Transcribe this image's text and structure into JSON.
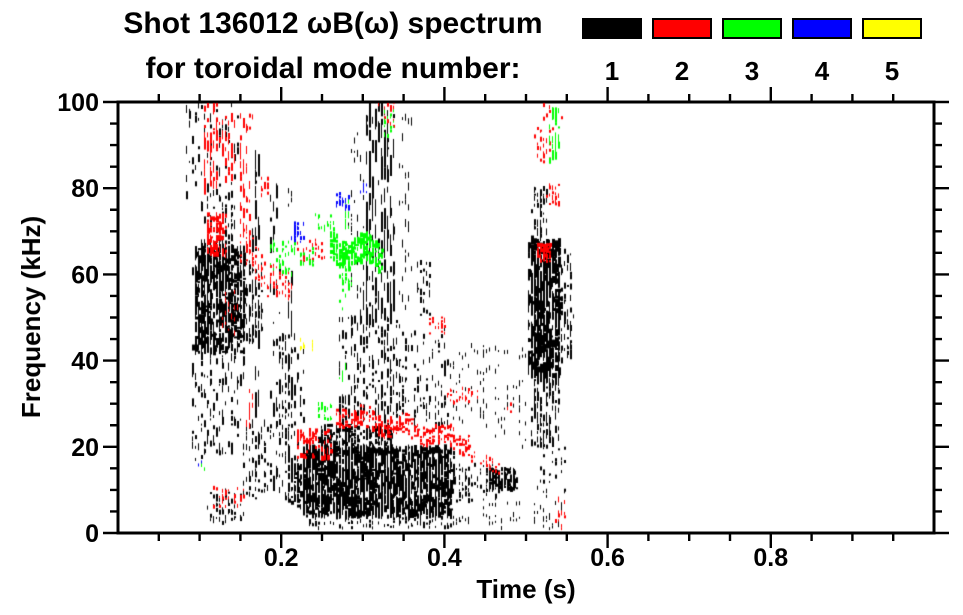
{
  "title": {
    "line1": "Shot 136012 ωB(ω) spectrum",
    "line2": "for toroidal mode number:"
  },
  "legend": {
    "entries": [
      {
        "label": "1",
        "color": "#000000"
      },
      {
        "label": "2",
        "color": "#ff0000"
      },
      {
        "label": "3",
        "color": "#00ff00"
      },
      {
        "label": "4",
        "color": "#0000ff"
      },
      {
        "label": "5",
        "color": "#ffff00"
      }
    ]
  },
  "chart_data": {
    "type": "scatter",
    "title": "Shot 136012 ωB(ω) spectrum for toroidal mode number 1-5",
    "xlabel": "Time (s)",
    "ylabel": "Frequency (kHz)",
    "xlim": [
      0,
      1
    ],
    "ylim": [
      0,
      100
    ],
    "x_major_ticks": [
      0.2,
      0.4,
      0.6,
      0.8
    ],
    "x_tick_labels": [
      "0.2",
      "0.4",
      "0.6",
      "0.8"
    ],
    "x_minor_step": 0.05,
    "y_major_ticks": [
      0,
      20,
      40,
      60,
      80,
      100
    ],
    "y_tick_labels": [
      "0",
      "20",
      "40",
      "60",
      "80",
      "100"
    ],
    "y_minor_step": 5,
    "grid": false,
    "legend_position": "top-right",
    "series": [
      {
        "name": "toroidal mode n=1",
        "color": "#000000",
        "clusters": [
          {
            "t": [
              0.092,
              0.155
            ],
            "f": [
              42,
              66
            ],
            "n": 650,
            "mw": 3,
            "mh": 9
          },
          {
            "t": [
              0.1,
              0.135
            ],
            "f": [
              57,
              68
            ],
            "n": 220,
            "mw": 2,
            "mh": 6
          },
          {
            "t": [
              0.155,
              0.177
            ],
            "f": [
              44,
              63
            ],
            "n": 70,
            "mw": 2,
            "mh": 8
          },
          {
            "t": [
              0.082,
              0.147
            ],
            "f": [
              78,
              101
            ],
            "n": 75,
            "mw": 2,
            "mh": 9
          },
          {
            "t": [
              0.1,
              0.142
            ],
            "f": [
              66,
              78
            ],
            "n": 55,
            "mw": 2,
            "mh": 6
          },
          {
            "t": [
              0.09,
              0.155
            ],
            "f": [
              17,
              43
            ],
            "n": 120,
            "mw": 2,
            "mh": 9
          },
          {
            "t": [
              0.165,
              0.173
            ],
            "f": [
              20,
              88
            ],
            "n": 35,
            "mw": 2,
            "mh": 20
          },
          {
            "t": [
              0.186,
              0.196
            ],
            "f": [
              10,
              82
            ],
            "n": 35,
            "mw": 2,
            "mh": 16
          },
          {
            "t": [
              0.209,
              0.214
            ],
            "f": [
              12,
              61
            ],
            "n": 25,
            "mw": 2,
            "mh": 18
          },
          {
            "t": [
              0.15,
              0.22
            ],
            "f": [
              8,
              26
            ],
            "n": 130,
            "mw": 2,
            "mh": 6
          },
          {
            "t": [
              0.196,
              0.226
            ],
            "f": [
              26,
              46
            ],
            "n": 60,
            "mw": 2,
            "mh": 8
          },
          {
            "t": [
              0.11,
              0.155
            ],
            "f": [
              2,
              10
            ],
            "n": 55,
            "mw": 2,
            "mh": 5
          },
          {
            "t": [
              0.208,
              0.228
            ],
            "f": [
              6,
              16
            ],
            "n": 80,
            "mw": 3,
            "mh": 6
          },
          {
            "t": [
              0.225,
              0.41
            ],
            "f": [
              4,
              20
            ],
            "n": 1600,
            "mw": 3,
            "mh": 10
          },
          {
            "t": [
              0.245,
              0.335
            ],
            "f": [
              18,
              25
            ],
            "n": 240,
            "mw": 3,
            "mh": 6
          },
          {
            "t": [
              0.23,
              0.43
            ],
            "f": [
              1,
              4
            ],
            "n": 110,
            "mw": 2,
            "mh": 4
          },
          {
            "t": [
              0.27,
              0.345
            ],
            "f": [
              25,
              50
            ],
            "n": 210,
            "mw": 2,
            "mh": 9
          },
          {
            "t": [
              0.302,
              0.337
            ],
            "f": [
              50,
              101
            ],
            "n": 160,
            "mw": 2,
            "mh": 22
          },
          {
            "t": [
              0.283,
              0.302
            ],
            "f": [
              50,
              96
            ],
            "n": 40,
            "mw": 1,
            "mh": 8
          },
          {
            "t": [
              0.345,
              0.36
            ],
            "f": [
              52,
              100
            ],
            "n": 32,
            "mw": 1,
            "mh": 9
          },
          {
            "t": [
              0.34,
              0.405
            ],
            "f": [
              24,
              48
            ],
            "n": 110,
            "mw": 2,
            "mh": 7
          },
          {
            "t": [
              0.365,
              0.383
            ],
            "f": [
              50,
              63
            ],
            "n": 28,
            "mw": 2,
            "mh": 6
          },
          {
            "t": [
              0.405,
              0.455
            ],
            "f": [
              24,
              44
            ],
            "n": 55,
            "mw": 1,
            "mh": 5
          },
          {
            "t": [
              0.415,
              0.465
            ],
            "f": [
              7,
              16
            ],
            "n": 70,
            "mw": 2,
            "mh": 5
          },
          {
            "t": [
              0.452,
              0.487
            ],
            "f": [
              10,
              15
            ],
            "n": 170,
            "mw": 3,
            "mh": 5
          },
          {
            "t": [
              0.46,
              0.505
            ],
            "f": [
              20,
              43
            ],
            "n": 45,
            "mw": 1,
            "mh": 5
          },
          {
            "t": [
              0.503,
              0.541
            ],
            "f": [
              36,
              68
            ],
            "n": 680,
            "mw": 3,
            "mh": 10
          },
          {
            "t": [
              0.541,
              0.556
            ],
            "f": [
              40,
              66
            ],
            "n": 60,
            "mw": 2,
            "mh": 7
          },
          {
            "t": [
              0.505,
              0.54
            ],
            "f": [
              20,
              36
            ],
            "n": 130,
            "mw": 2,
            "mh": 7
          },
          {
            "t": [
              0.507,
              0.524
            ],
            "f": [
              68,
              80
            ],
            "n": 55,
            "mw": 2,
            "mh": 6
          },
          {
            "t": [
              0.515,
              0.55
            ],
            "f": [
              8,
              20
            ],
            "n": 30,
            "mw": 2,
            "mh": 4
          },
          {
            "t": [
              0.44,
              0.55
            ],
            "f": [
              1,
              7
            ],
            "n": 50,
            "mw": 1,
            "mh": 4
          },
          {
            "t": [
              0.208,
              0.214
            ],
            "f": [
              76,
              80
            ],
            "n": 8,
            "mw": 1,
            "mh": 4
          }
        ]
      },
      {
        "name": "toroidal mode n=2",
        "color": "#ff0000",
        "clusters": [
          {
            "t": [
              0.104,
              0.121
            ],
            "f": [
              78,
              101
            ],
            "n": 55,
            "mw": 2,
            "mh": 12
          },
          {
            "t": [
              0.125,
              0.141
            ],
            "f": [
              80,
              97
            ],
            "n": 35,
            "mw": 2,
            "mh": 9
          },
          {
            "t": [
              0.108,
              0.131
            ],
            "f": [
              64,
              74
            ],
            "n": 95,
            "mw": 3,
            "mh": 6
          },
          {
            "t": [
              0.148,
              0.163
            ],
            "f": [
              66,
              97
            ],
            "n": 42,
            "mw": 2,
            "mh": 10
          },
          {
            "t": [
              0.148,
              0.212
            ],
            "f": [
              66,
              56
            ],
            "n": 100,
            "mw": 2,
            "mh": 4,
            "band": true,
            "spread": 4
          },
          {
            "t": [
              0.128,
              0.147
            ],
            "f": [
              46,
              56
            ],
            "n": 18,
            "mw": 1,
            "mh": 6
          },
          {
            "t": [
              0.156,
              0.163
            ],
            "f": [
              24,
              33
            ],
            "n": 10,
            "mw": 1,
            "mh": 8
          },
          {
            "t": [
              0.173,
              0.186
            ],
            "f": [
              78,
              83
            ],
            "n": 12,
            "mw": 2,
            "mh": 4
          },
          {
            "t": [
              0.218,
              0.252
            ],
            "f": [
              63,
              68
            ],
            "n": 30,
            "mw": 2,
            "mh": 4
          },
          {
            "t": [
              0.218,
              0.262
            ],
            "f": [
              17,
              24
            ],
            "n": 70,
            "mw": 3,
            "mh": 5
          },
          {
            "t": [
              0.268,
              0.432
            ],
            "f": [
              27.5,
              21
            ],
            "n": 260,
            "mw": 3,
            "mh": 4,
            "band": true,
            "spread": 2.4
          },
          {
            "t": [
              0.432,
              0.465
            ],
            "f": [
              17.5,
              15
            ],
            "n": 28,
            "mw": 2,
            "mh": 3,
            "band": true,
            "spread": 1.5
          },
          {
            "t": [
              0.4,
              0.442
            ],
            "f": [
              30,
              34
            ],
            "n": 30,
            "mw": 2,
            "mh": 3
          },
          {
            "t": [
              0.378,
              0.402
            ],
            "f": [
              46,
              50
            ],
            "n": 20,
            "mw": 2,
            "mh": 3
          },
          {
            "t": [
              0.115,
              0.155
            ],
            "f": [
              6,
              10.5
            ],
            "n": 30,
            "mw": 2,
            "mh": 4
          },
          {
            "t": [
              0.318,
              0.34
            ],
            "f": [
              94,
              101
            ],
            "n": 18,
            "mw": 2,
            "mh": 5
          },
          {
            "t": [
              0.474,
              0.482
            ],
            "f": [
              28,
              30
            ],
            "n": 8,
            "mw": 2,
            "mh": 3
          },
          {
            "t": [
              0.513,
              0.53
            ],
            "f": [
              63,
              67
            ],
            "n": 55,
            "mw": 3,
            "mh": 5
          },
          {
            "t": [
              0.524,
              0.541
            ],
            "f": [
              76,
              81
            ],
            "n": 25,
            "mw": 2,
            "mh": 4
          },
          {
            "t": [
              0.511,
              0.533
            ],
            "f": [
              86,
              94
            ],
            "n": 25,
            "mw": 2,
            "mh": 5
          },
          {
            "t": [
              0.518,
              0.542
            ],
            "f": [
              96,
              101
            ],
            "n": 15,
            "mw": 2,
            "mh": 4
          },
          {
            "t": [
              0.536,
              0.547
            ],
            "f": [
              1,
              8
            ],
            "n": 12,
            "mw": 2,
            "mh": 5
          }
        ]
      },
      {
        "name": "toroidal mode n=3",
        "color": "#00ff00",
        "clusters": [
          {
            "t": [
              0.186,
              0.215
            ],
            "f": [
              60,
              68
            ],
            "n": 40,
            "mw": 2,
            "mh": 5
          },
          {
            "t": [
              0.222,
              0.24
            ],
            "f": [
              62,
              66
            ],
            "n": 20,
            "mw": 2,
            "mh": 4
          },
          {
            "t": [
              0.243,
              0.262
            ],
            "f": [
              26,
              30
            ],
            "n": 25,
            "mw": 2,
            "mh": 4
          },
          {
            "t": [
              0.243,
              0.262
            ],
            "f": [
              70,
              74
            ],
            "n": 18,
            "mw": 2,
            "mh": 4
          },
          {
            "t": [
              0.258,
              0.322
            ],
            "f": [
              66,
              64.5
            ],
            "n": 240,
            "mw": 3,
            "mh": 5,
            "band": true,
            "spread": 3.2
          },
          {
            "t": [
              0.272,
              0.285
            ],
            "f": [
              52,
              60
            ],
            "n": 20,
            "mw": 2,
            "mh": 5
          },
          {
            "t": [
              0.276,
              0.284
            ],
            "f": [
              70,
              78
            ],
            "n": 14,
            "mw": 1,
            "mh": 7
          },
          {
            "t": [
              0.272,
              0.277
            ],
            "f": [
              35.5,
              39.5
            ],
            "n": 8,
            "mw": 1,
            "mh": 5
          },
          {
            "t": [
              0.324,
              0.337
            ],
            "f": [
              92,
              98
            ],
            "n": 16,
            "mw": 2,
            "mh": 5
          },
          {
            "t": [
              0.529,
              0.539
            ],
            "f": [
              86,
              98
            ],
            "n": 30,
            "mw": 2,
            "mh": 9
          },
          {
            "t": [
              0.099,
              0.107
            ],
            "f": [
              14,
              18
            ],
            "n": 5,
            "mw": 1,
            "mh": 3
          }
        ]
      },
      {
        "name": "toroidal mode n=4",
        "color": "#0000ff",
        "clusters": [
          {
            "t": [
              0.212,
              0.226
            ],
            "f": [
              67,
              72
            ],
            "n": 26,
            "mw": 2,
            "mh": 5
          },
          {
            "t": [
              0.268,
              0.284
            ],
            "f": [
              75,
              79
            ],
            "n": 26,
            "mw": 2,
            "mh": 5
          },
          {
            "t": [
              0.296,
              0.303
            ],
            "f": [
              79,
              82
            ],
            "n": 8,
            "mw": 1,
            "mh": 4
          },
          {
            "t": [
              0.096,
              0.101
            ],
            "f": [
              15,
              17
            ],
            "n": 3,
            "mw": 1,
            "mh": 3
          }
        ]
      },
      {
        "name": "toroidal mode n=5",
        "color": "#ffff00",
        "clusters": [
          {
            "t": [
              0.2215,
              0.2265
            ],
            "f": [
              42.5,
              45
            ],
            "n": 5,
            "mw": 2,
            "mh": 4
          },
          {
            "t": [
              0.233,
              0.239
            ],
            "f": [
              42.5,
              44.5
            ],
            "n": 4,
            "mw": 1,
            "mh": 3
          }
        ]
      }
    ]
  }
}
